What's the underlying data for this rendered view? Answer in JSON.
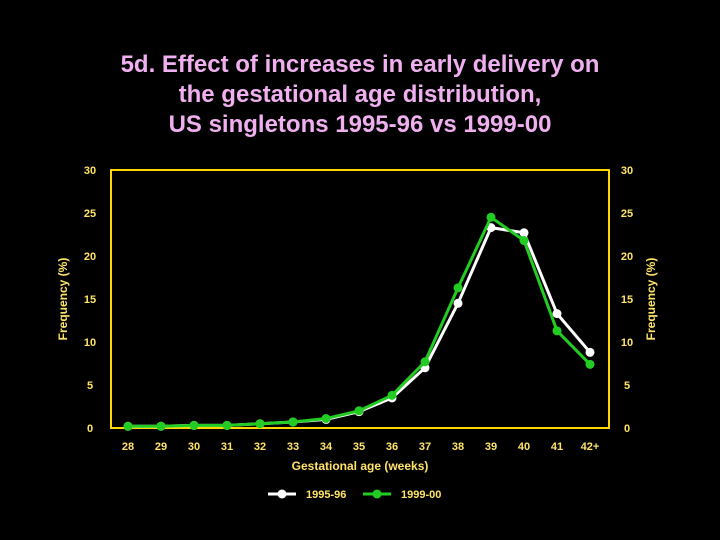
{
  "title_lines": [
    "5d. Effect of increases in early delivery on",
    "the gestational age distribution,",
    "US singletons 1995-96 vs 1999-00"
  ],
  "colors": {
    "frame": "#ffd700",
    "axis_text": "#ffe46a",
    "title": "#f0b0f0",
    "series_1995": "#ffffff",
    "series_1999": "#22cc22"
  },
  "chart_data": {
    "type": "line",
    "categories": [
      "28",
      "29",
      "30",
      "31",
      "32",
      "33",
      "34",
      "35",
      "36",
      "37",
      "38",
      "39",
      "40",
      "41",
      "42+"
    ],
    "xlabel": "Gestational age (weeks)",
    "ylabel": "Frequency (%)",
    "ylabel_right": "Frequency (%)",
    "ylim": [
      0,
      30
    ],
    "yticks": [
      "0",
      "5",
      "10",
      "15",
      "20",
      "25",
      "30"
    ],
    "grid": false,
    "legend_position": "bottom-center",
    "series": [
      {
        "name": "1995-96",
        "color": "#ffffff",
        "values": [
          0.2,
          0.2,
          0.3,
          0.3,
          0.5,
          0.7,
          1.0,
          1.9,
          3.5,
          7.0,
          14.5,
          23.3,
          22.7,
          13.3,
          8.8
        ]
      },
      {
        "name": "1999-00",
        "color": "#22cc22",
        "values": [
          0.2,
          0.2,
          0.3,
          0.3,
          0.5,
          0.7,
          1.1,
          2.0,
          3.8,
          7.7,
          16.3,
          24.5,
          21.8,
          11.3,
          7.4
        ]
      }
    ]
  }
}
